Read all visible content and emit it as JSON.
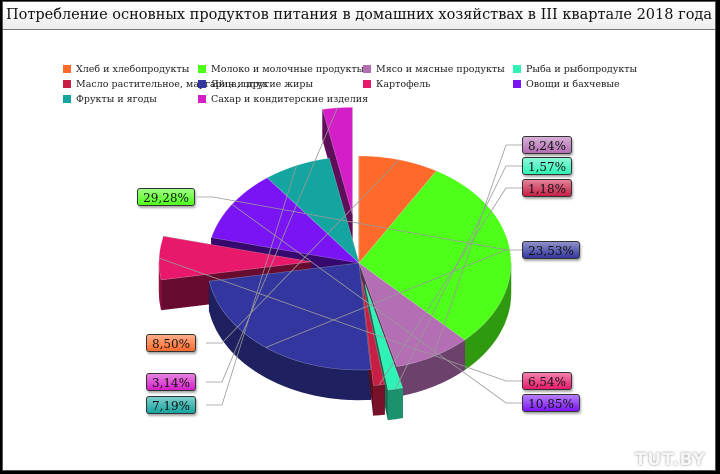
{
  "chart_data": {
    "type": "pie",
    "title": "Потребление основных продуктов питания в домашних хозяйствах в III квартале 2018 года",
    "legend_position": "top",
    "slices": [
      {
        "label": "Хлеб и хлебопродукты",
        "value": 8.5,
        "display": "8,50%",
        "color": "#ff6a2b"
      },
      {
        "label": "Молоко и молочные продукты",
        "value": 29.28,
        "display": "29,28%",
        "color": "#4eff1a"
      },
      {
        "label": "Мясо и мясные продукты",
        "value": 8.24,
        "display": "8,24%",
        "color": "#b46eb4"
      },
      {
        "label": "Рыба и рыбопродукты",
        "value": 1.57,
        "display": "1,57%",
        "color": "#2ef2b6"
      },
      {
        "label": "Масло растительное, маргарин и другие жиры",
        "value": 1.18,
        "display": "1,18%",
        "color": "#c81e46"
      },
      {
        "label": "Яйца, штук",
        "value": 23.53,
        "display": "23,53%",
        "color": "#33369e"
      },
      {
        "label": "Картофель",
        "value": 6.54,
        "display": "6,54%",
        "color": "#e8196a"
      },
      {
        "label": "Овощи и бахчевые",
        "value": 10.85,
        "display": "10,85%",
        "color": "#7a14f5"
      },
      {
        "label": "Фрукты и ягоды",
        "value": 7.19,
        "display": "7,19%",
        "color": "#14a5a0"
      },
      {
        "label": "Сахар и кондитерские изделия",
        "value": 3.14,
        "display": "3,14%",
        "color": "#d41ec8"
      }
    ]
  },
  "watermark": "TUT.BY"
}
